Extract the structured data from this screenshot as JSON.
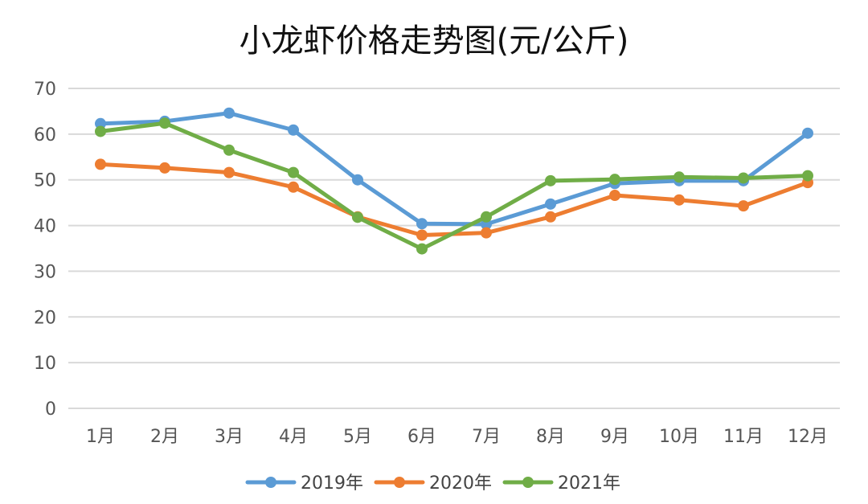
{
  "chart_data": {
    "type": "line",
    "title": "小龙虾价格走势图(元/公斤)",
    "xlabel": "",
    "ylabel": "",
    "ylim": [
      0,
      70
    ],
    "yticks": [
      0,
      10,
      20,
      30,
      40,
      50,
      60,
      70
    ],
    "grid": true,
    "legend_position": "bottom",
    "categories": [
      "1月",
      "2月",
      "3月",
      "4月",
      "5月",
      "6月",
      "7月",
      "8月",
      "9月",
      "10月",
      "11月",
      "12月"
    ],
    "series": [
      {
        "name": "2019年",
        "color": "#5b9bd5",
        "values": [
          62.3,
          62.8,
          64.6,
          60.9,
          50.0,
          40.4,
          40.3,
          44.7,
          49.2,
          49.8,
          49.8,
          60.2
        ]
      },
      {
        "name": "2020年",
        "color": "#ed7d31",
        "values": [
          53.4,
          52.6,
          51.6,
          48.4,
          41.9,
          37.9,
          38.4,
          41.9,
          46.6,
          45.6,
          44.3,
          49.4
        ]
      },
      {
        "name": "2021年",
        "color": "#70ad47",
        "values": [
          60.6,
          62.4,
          56.5,
          51.6,
          41.8,
          34.9,
          41.9,
          49.8,
          50.1,
          50.6,
          50.4,
          50.9
        ]
      }
    ]
  }
}
